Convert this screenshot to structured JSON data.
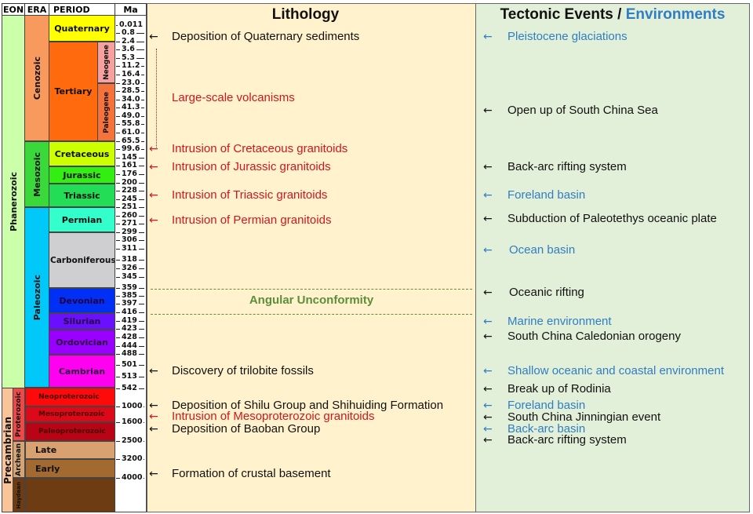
{
  "headers": {
    "eon": "EON",
    "era": "ERA",
    "period": "PERIOD",
    "ma": "Ma"
  },
  "lithology_title": "Lithology",
  "tectonic_title": {
    "part1": "Tectonic Events",
    "sep": " / ",
    "part2": "Environments"
  },
  "unconformity": "Angular Unconformity",
  "colors": {
    "lithology_bg": "#fff2cc",
    "tectonic_bg": "#e2efd9",
    "black": "#111111",
    "red": "#d0161e",
    "blue": "#2f7ec4",
    "green": "#5b8f3a"
  },
  "eons": [
    {
      "label": "Phanerozoic",
      "color": "#ccffaa"
    },
    {
      "label": "Precambrian",
      "color": "#f9c49a"
    }
  ],
  "eras": [
    {
      "label": "Cenozoic",
      "color": "#f89a5e"
    },
    {
      "label": "Mesozoic",
      "color": "#3ad83a"
    },
    {
      "label": "Paleozoic",
      "color": "#00c8f8"
    },
    {
      "label": "Proterozoic",
      "color": "#f04848"
    },
    {
      "label": "Archean",
      "color": "#d3a575"
    },
    {
      "label": "Haydean",
      "color": "#6e3c12"
    }
  ],
  "periods": [
    {
      "label": "Quaternary",
      "color": "#ffff00"
    },
    {
      "label": "Tertiary",
      "color": "#ff6a0f"
    },
    {
      "label": "Neogene",
      "color": "#f7a0a0"
    },
    {
      "label": "Paleogene",
      "color": "#f5733a"
    },
    {
      "label": "Cretaceous",
      "color": "#ccff00"
    },
    {
      "label": "Jurassic",
      "color": "#33ee11"
    },
    {
      "label": "Triassic",
      "color": "#22dd55"
    },
    {
      "label": "Permian",
      "color": "#33ffcc"
    },
    {
      "label": "Carboniferous",
      "color": "#cfcfd2"
    },
    {
      "label": "Devonian",
      "color": "#0030f5"
    },
    {
      "label": "Silurian",
      "color": "#6a10ff"
    },
    {
      "label": "Ordovician",
      "color": "#9a00ff"
    },
    {
      "label": "Cambrian",
      "color": "#ff00f0"
    },
    {
      "label": "Neoproterozoic",
      "color": "#ff0a0a"
    },
    {
      "label": "Mesoproterozoic",
      "color": "#dd0818"
    },
    {
      "label": "Paleoproterozoic",
      "color": "#b80414"
    },
    {
      "label": "Late",
      "color": "#d9a070"
    },
    {
      "label": "Early",
      "color": "#a26a30"
    },
    {
      "label": "",
      "color": "#6e3c12"
    }
  ],
  "ma_ticks": [
    "0.011",
    "0.8",
    "2.4",
    "3.6",
    "5.3",
    "11.2",
    "16.4",
    "23.0",
    "28.5",
    "34.0",
    "41.3",
    "49.0",
    "55.8",
    "61.0",
    "65.5",
    "99.6",
    "145",
    "161",
    "176",
    "200",
    "228",
    "245",
    "251",
    "260",
    "271",
    "299",
    "306",
    "311",
    "318",
    "326",
    "345",
    "359",
    "385",
    "397",
    "416",
    "419",
    "423",
    "428",
    "444",
    "488",
    "501",
    "513",
    "542",
    "1000",
    "1600",
    "2500",
    "3200",
    "4000"
  ],
  "lithology_events": [
    {
      "text": "Deposition of Quaternary sediments",
      "color": "black",
      "arrow": true
    },
    {
      "text": "Large-scale volcanisms",
      "color": "red",
      "arrow": false
    },
    {
      "text": "Intrusion of Cretaceous granitoids",
      "color": "red",
      "arrow": true
    },
    {
      "text": "Intrusion of Jurassic granitoids",
      "color": "red",
      "arrow": true
    },
    {
      "text": "Intrusion of Triassic granitoids",
      "color": "red",
      "arrow": true
    },
    {
      "text": "Intrusion of Permian granitoids",
      "color": "red",
      "arrow": true
    },
    {
      "text": "Discovery of trilobite fossils",
      "color": "black",
      "arrow": true
    },
    {
      "text": "Deposition of Shilu Group and Shihuiding Formation",
      "color": "black",
      "arrow": true
    },
    {
      "text": "Intrusion of Mesoproterozoic granitoids",
      "color": "red",
      "arrow": true
    },
    {
      "text": "Deposition of Baoban Group",
      "color": "black",
      "arrow": true
    },
    {
      "text": "Formation of crustal basement",
      "color": "black",
      "arrow": true
    }
  ],
  "tectonic_events": [
    {
      "text": "Pleistocene glaciations",
      "color": "blue"
    },
    {
      "text": "Open up of South China Sea",
      "color": "black"
    },
    {
      "text": "Back-arc rifting system",
      "color": "black"
    },
    {
      "text": "Foreland basin",
      "color": "blue"
    },
    {
      "text": "Subduction of Paleotethys oceanic plate",
      "color": "black"
    },
    {
      "text": "Ocean basin",
      "color": "blue"
    },
    {
      "text": "Oceanic rifting",
      "color": "black"
    },
    {
      "text": "Marine environment",
      "color": "blue"
    },
    {
      "text": "South China Caledonian orogeny",
      "color": "black"
    },
    {
      "text": "Shallow oceanic and coastal environment",
      "color": "blue"
    },
    {
      "text": "Break up of Rodinia",
      "color": "black"
    },
    {
      "text": "Foreland basin",
      "color": "blue"
    },
    {
      "text": "South China Jinningian event",
      "color": "black"
    },
    {
      "text": "Back-arc basin",
      "color": "blue"
    },
    {
      "text": "Back-arc rifting system",
      "color": "black"
    }
  ],
  "arrow_glyph": "←"
}
